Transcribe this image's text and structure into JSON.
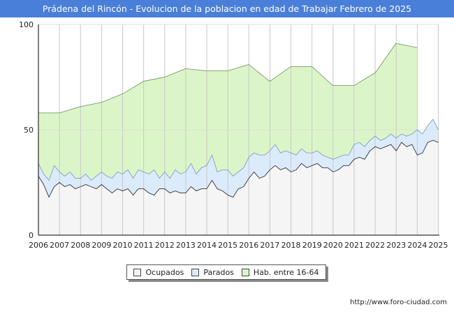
{
  "chart_data": {
    "type": "area",
    "title": "Prádena del Rincón - Evolucion de la poblacion en edad de Trabajar Febrero de 2025",
    "xlabel": "",
    "ylabel": "",
    "ylim": [
      0,
      100
    ],
    "yticks": [
      "0",
      "50",
      "100"
    ],
    "xticks": [
      "2006",
      "2007",
      "2008",
      "2009",
      "2010",
      "2011",
      "2012",
      "2013",
      "2014",
      "2015",
      "2016",
      "2017",
      "2018",
      "2019",
      "2020",
      "2021",
      "2022",
      "2023",
      "2024",
      "2025"
    ],
    "grid": true,
    "legend": [
      {
        "label": "Ocupados",
        "color": "#f5f5f5"
      },
      {
        "label": "Parados",
        "color": "#dcebfb"
      },
      {
        "label": "Hab. entre 16-64",
        "color": "#dcf5c8"
      }
    ],
    "series": [
      {
        "name": "Hab. entre 16-64",
        "x": [
          2006,
          2007,
          2007.99,
          2008,
          2008.99,
          2009,
          2009.99,
          2010,
          2010.99,
          2011,
          2011.99,
          2012,
          2012.99,
          2013,
          2013.99,
          2014,
          2014.99,
          2015,
          2015.99,
          2016,
          2016.99,
          2017,
          2017.99,
          2018,
          2018.99,
          2019,
          2019.99,
          2020,
          2020.99,
          2021,
          2021.99,
          2022,
          2022.99,
          2023,
          2023.99,
          2024
        ],
        "values": [
          58,
          58,
          61,
          61,
          63,
          63,
          67,
          67,
          73,
          73,
          75,
          75,
          79,
          79,
          78,
          78,
          78,
          78,
          81,
          81,
          73,
          73,
          80,
          80,
          80,
          80,
          71,
          71,
          71,
          71,
          77,
          77,
          91,
          91,
          89,
          89
        ]
      },
      {
        "name": "Parados",
        "x": [
          2006,
          2006.25,
          2006.5,
          2006.75,
          2007,
          2007.25,
          2007.5,
          2007.75,
          2008,
          2008.25,
          2008.5,
          2008.75,
          2009,
          2009.25,
          2009.5,
          2009.75,
          2010,
          2010.25,
          2010.5,
          2010.75,
          2011,
          2011.25,
          2011.5,
          2011.75,
          2012,
          2012.25,
          2012.5,
          2012.75,
          2013,
          2013.25,
          2013.5,
          2013.75,
          2014,
          2014.25,
          2014.5,
          2014.75,
          2015,
          2015.25,
          2015.5,
          2015.75,
          2016,
          2016.25,
          2016.5,
          2016.75,
          2017,
          2017.25,
          2017.5,
          2017.75,
          2018,
          2018.25,
          2018.5,
          2018.75,
          2019,
          2019.25,
          2019.5,
          2019.75,
          2020,
          2020.25,
          2020.5,
          2020.75,
          2021,
          2021.25,
          2021.5,
          2021.75,
          2022,
          2022.25,
          2022.5,
          2022.75,
          2023,
          2023.25,
          2023.5,
          2023.75,
          2024,
          2024.25,
          2024.5,
          2024.75,
          2025
        ],
        "values": [
          34,
          29,
          26,
          33,
          30,
          28,
          30,
          27,
          27,
          29,
          26,
          28,
          30,
          28,
          27,
          30,
          29,
          31,
          27,
          31,
          30,
          29,
          31,
          27,
          30,
          27,
          31,
          29,
          30,
          34,
          29,
          32,
          33,
          38,
          30,
          31,
          31,
          28,
          30,
          32,
          37,
          39,
          38,
          38,
          40,
          43,
          39,
          40,
          39,
          38,
          41,
          39,
          39,
          40,
          38,
          37,
          36,
          37,
          38,
          38,
          43,
          44,
          42,
          45,
          47,
          45,
          46,
          48,
          46,
          48,
          47,
          48,
          50,
          48,
          52,
          55,
          50
        ]
      },
      {
        "name": "Ocupados",
        "x": [
          2006,
          2006.25,
          2006.5,
          2006.75,
          2007,
          2007.25,
          2007.5,
          2007.75,
          2008,
          2008.25,
          2008.5,
          2008.75,
          2009,
          2009.25,
          2009.5,
          2009.75,
          2010,
          2010.25,
          2010.5,
          2010.75,
          2011,
          2011.25,
          2011.5,
          2011.75,
          2012,
          2012.25,
          2012.5,
          2012.75,
          2013,
          2013.25,
          2013.5,
          2013.75,
          2014,
          2014.25,
          2014.5,
          2014.75,
          2015,
          2015.25,
          2015.5,
          2015.75,
          2016,
          2016.25,
          2016.5,
          2016.75,
          2017,
          2017.25,
          2017.5,
          2017.75,
          2018,
          2018.25,
          2018.5,
          2018.75,
          2019,
          2019.25,
          2019.5,
          2019.75,
          2020,
          2020.25,
          2020.5,
          2020.75,
          2021,
          2021.25,
          2021.5,
          2021.75,
          2022,
          2022.25,
          2022.5,
          2022.75,
          2023,
          2023.25,
          2023.5,
          2023.75,
          2024,
          2024.25,
          2024.5,
          2024.75,
          2025
        ],
        "values": [
          28,
          24,
          18,
          23,
          25,
          23,
          24,
          22,
          23,
          24,
          23,
          22,
          24,
          22,
          20,
          22,
          21,
          22,
          19,
          22,
          22,
          20,
          19,
          22,
          22,
          20,
          21,
          20,
          20,
          23,
          21,
          22,
          22,
          26,
          22,
          21,
          19,
          18,
          22,
          23,
          27,
          30,
          27,
          28,
          31,
          33,
          31,
          32,
          30,
          31,
          34,
          32,
          33,
          34,
          32,
          32,
          30,
          31,
          33,
          33,
          36,
          37,
          36,
          40,
          42,
          41,
          42,
          43,
          40,
          44,
          42,
          43,
          38,
          39,
          44,
          45,
          44
        ]
      }
    ]
  },
  "footer": {
    "source": "http://www.foro-ciudad.com"
  }
}
